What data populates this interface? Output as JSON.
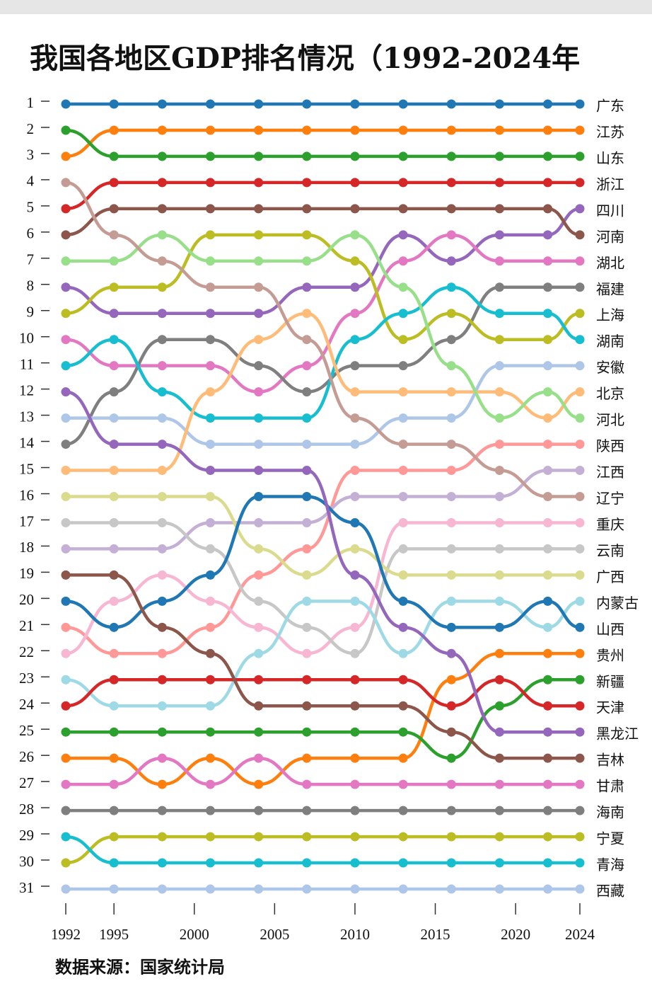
{
  "chart_data": {
    "type": "bump",
    "title": "我国各地区GDP排名情况（1992-2024年",
    "source": "数据来源：国家统计局",
    "x": [
      1992,
      1995,
      1998,
      2001,
      2004,
      2007,
      2010,
      2013,
      2016,
      2019,
      2022,
      2024
    ],
    "xlim": [
      1992,
      2024
    ],
    "xticks": [
      1992,
      1995,
      2000,
      2005,
      2010,
      2015,
      2020,
      2024
    ],
    "ylim": [
      1,
      31
    ],
    "yticks": [
      1,
      2,
      3,
      4,
      5,
      6,
      7,
      8,
      9,
      10,
      11,
      12,
      13,
      14,
      15,
      16,
      17,
      18,
      19,
      20,
      21,
      22,
      23,
      24,
      25,
      26,
      27,
      28,
      29,
      30,
      31
    ],
    "y_inverted": true,
    "series": [
      {
        "name": "广东",
        "color": "#1f77b4",
        "values": [
          1,
          1,
          1,
          1,
          1,
          1,
          1,
          1,
          1,
          1,
          1,
          1
        ]
      },
      {
        "name": "江苏",
        "color": "#ff7f0e",
        "values": [
          3,
          2,
          2,
          2,
          2,
          2,
          2,
          2,
          2,
          2,
          2,
          2
        ]
      },
      {
        "name": "山东",
        "color": "#2ca02c",
        "values": [
          2,
          3,
          3,
          3,
          3,
          3,
          3,
          3,
          3,
          3,
          3,
          3
        ]
      },
      {
        "name": "浙江",
        "color": "#d62728",
        "values": [
          5,
          4,
          4,
          4,
          4,
          4,
          4,
          4,
          4,
          4,
          4,
          4
        ]
      },
      {
        "name": "四川",
        "color": "#9467bd",
        "values": [
          8,
          9,
          9,
          9,
          9,
          8,
          8,
          6,
          7,
          6,
          6,
          5
        ]
      },
      {
        "name": "河南",
        "color": "#8c564b",
        "values": [
          6,
          5,
          5,
          5,
          5,
          5,
          5,
          5,
          5,
          5,
          5,
          6
        ]
      },
      {
        "name": "湖北",
        "color": "#e377c2",
        "values": [
          10,
          11,
          11,
          11,
          12,
          11,
          9,
          7,
          6,
          7,
          7,
          7
        ]
      },
      {
        "name": "福建",
        "color": "#7f7f7f",
        "values": [
          14,
          12,
          10,
          10,
          11,
          12,
          11,
          11,
          10,
          8,
          8,
          8
        ]
      },
      {
        "name": "上海",
        "color": "#bcbd22",
        "values": [
          9,
          8,
          8,
          6,
          6,
          6,
          7,
          10,
          9,
          10,
          10,
          9
        ]
      },
      {
        "name": "湖南",
        "color": "#17becf",
        "values": [
          11,
          10,
          12,
          13,
          13,
          13,
          10,
          9,
          8,
          9,
          9,
          10
        ]
      },
      {
        "name": "安徽",
        "color": "#aec7e8",
        "values": [
          13,
          13,
          13,
          14,
          14,
          14,
          14,
          13,
          13,
          11,
          11,
          11
        ]
      },
      {
        "name": "北京",
        "color": "#ffbb78",
        "values": [
          15,
          15,
          15,
          12,
          10,
          9,
          12,
          12,
          12,
          12,
          13,
          12
        ]
      },
      {
        "name": "河北",
        "color": "#98df8a",
        "values": [
          7,
          7,
          6,
          7,
          7,
          7,
          6,
          8,
          11,
          13,
          12,
          13
        ]
      },
      {
        "name": "陕西",
        "color": "#ff9896",
        "values": [
          21,
          22,
          22,
          21,
          19,
          18,
          15,
          15,
          15,
          14,
          14,
          14
        ]
      },
      {
        "name": "江西",
        "color": "#c5b0d5",
        "values": [
          18,
          18,
          18,
          17,
          17,
          17,
          16,
          16,
          16,
          16,
          15,
          15
        ]
      },
      {
        "name": "辽宁",
        "color": "#c49c94",
        "values": [
          4,
          6,
          7,
          8,
          8,
          10,
          13,
          14,
          14,
          15,
          16,
          16
        ]
      },
      {
        "name": "重庆",
        "color": "#f7b6d2",
        "values": [
          22,
          20,
          19,
          20,
          21,
          22,
          21,
          17,
          17,
          17,
          17,
          17
        ]
      },
      {
        "name": "云南",
        "color": "#c7c7c7",
        "values": [
          17,
          17,
          17,
          18,
          20,
          21,
          22,
          18,
          18,
          18,
          18,
          18
        ]
      },
      {
        "name": "广西",
        "color": "#dbdb8d",
        "values": [
          16,
          16,
          16,
          16,
          18,
          19,
          18,
          19,
          19,
          19,
          19,
          19
        ]
      },
      {
        "name": "内蒙古",
        "color": "#9edae5",
        "values": [
          23,
          24,
          24,
          24,
          22,
          20,
          20,
          22,
          20,
          20,
          21,
          20
        ]
      },
      {
        "name": "山西",
        "color": "#1f77b4",
        "values": [
          20,
          21,
          20,
          19,
          16,
          16,
          17,
          20,
          21,
          21,
          20,
          21
        ]
      },
      {
        "name": "贵州",
        "color": "#ff7f0e",
        "values": [
          26,
          26,
          27,
          26,
          27,
          26,
          26,
          26,
          23,
          22,
          22,
          22
        ]
      },
      {
        "name": "新疆",
        "color": "#2ca02c",
        "values": [
          25,
          25,
          25,
          25,
          25,
          25,
          25,
          25,
          26,
          24,
          23,
          23
        ]
      },
      {
        "name": "天津",
        "color": "#d62728",
        "values": [
          24,
          23,
          23,
          23,
          23,
          23,
          23,
          23,
          24,
          23,
          24,
          24
        ]
      },
      {
        "name": "黑龙江",
        "color": "#9467bd",
        "values": [
          12,
          14,
          14,
          15,
          15,
          15,
          19,
          21,
          22,
          25,
          25,
          25
        ]
      },
      {
        "name": "吉林",
        "color": "#8c564b",
        "values": [
          19,
          19,
          21,
          22,
          24,
          24,
          24,
          24,
          25,
          26,
          26,
          26
        ]
      },
      {
        "name": "甘肃",
        "color": "#e377c2",
        "values": [
          27,
          27,
          26,
          27,
          26,
          27,
          27,
          27,
          27,
          27,
          27,
          27
        ]
      },
      {
        "name": "海南",
        "color": "#7f7f7f",
        "values": [
          28,
          28,
          28,
          28,
          28,
          28,
          28,
          28,
          28,
          28,
          28,
          28
        ]
      },
      {
        "name": "宁夏",
        "color": "#bcbd22",
        "values": [
          30,
          29,
          29,
          29,
          29,
          29,
          29,
          29,
          29,
          29,
          29,
          29
        ]
      },
      {
        "name": "青海",
        "color": "#17becf",
        "values": [
          29,
          30,
          30,
          30,
          30,
          30,
          30,
          30,
          30,
          30,
          30,
          30
        ]
      },
      {
        "name": "西藏",
        "color": "#aec7e8",
        "values": [
          31,
          31,
          31,
          31,
          31,
          31,
          31,
          31,
          31,
          31,
          31,
          31
        ]
      }
    ]
  }
}
